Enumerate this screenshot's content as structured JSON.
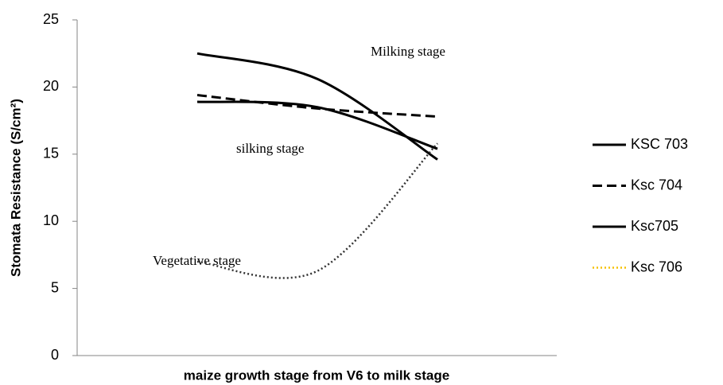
{
  "chart_data": {
    "type": "line",
    "x_label": "maize growth stage from V6 to milk stage",
    "y_label": "Stomata Resistance (S/cm²)",
    "categories": [
      null,
      null,
      null
    ],
    "ylim": [
      0,
      25
    ],
    "yticks": [
      0,
      5,
      10,
      15,
      20,
      25
    ],
    "smooth": true,
    "legend": "right",
    "series": [
      {
        "name": "KSC 703",
        "color": "#000000",
        "dash": "solid",
        "values": [
          22.5,
          20.6,
          14.6
        ]
      },
      {
        "name": "Ksc 704",
        "color": "#000000",
        "dash": "dashed",
        "values": [
          19.4,
          18.4,
          17.8
        ]
      },
      {
        "name": "Ksc705",
        "color": "#000000",
        "dash": "solid",
        "values": [
          18.9,
          18.5,
          15.4
        ]
      },
      {
        "name": "Ksc 706",
        "color": "#333333",
        "legend_color": "#f5c000",
        "dash": "dotted",
        "values": [
          7.0,
          6.3,
          15.8
        ]
      }
    ],
    "annotations": [
      "Milking  stage",
      "silking stage",
      "Vegetative  stage"
    ]
  }
}
